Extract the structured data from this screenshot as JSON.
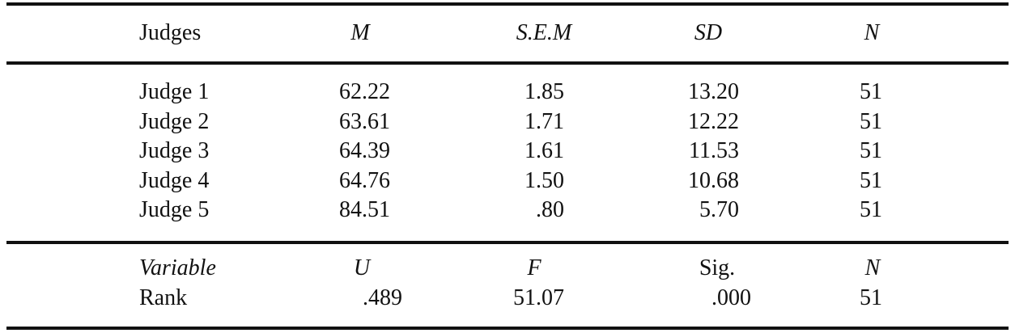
{
  "table": {
    "header": [
      "Judges",
      "M",
      "S.E.M",
      "SD",
      "N"
    ],
    "rows": [
      [
        "Judge 1",
        "62.22",
        "1.85",
        "13.20",
        "51"
      ],
      [
        "Judge 2",
        "63.61",
        "1.71",
        "12.22",
        "51"
      ],
      [
        "Judge 3",
        "64.39",
        "1.61",
        "11.53",
        "51"
      ],
      [
        "Judge 4",
        "64.76",
        "1.50",
        "10.68",
        "51"
      ],
      [
        "Judge 5",
        "84.51",
        ".80",
        "5.70",
        "51"
      ]
    ],
    "header2": [
      "Variable",
      "U",
      "F",
      "Sig.",
      "N"
    ],
    "rows2": [
      [
        "Rank",
        ".489",
        "51.07",
        ".000",
        "51"
      ]
    ]
  }
}
